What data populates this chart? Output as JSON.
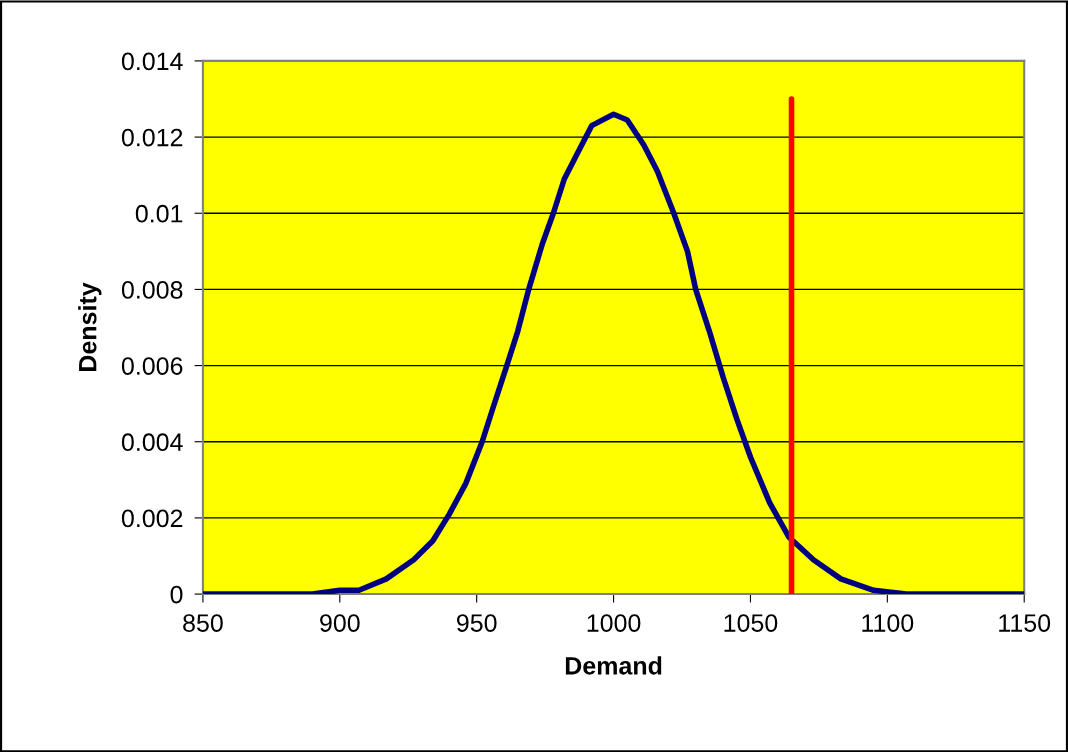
{
  "chart_data": {
    "type": "line",
    "xlabel": "Demand",
    "ylabel": "Density",
    "xlim": [
      850,
      1150
    ],
    "xticks": [
      850,
      900,
      950,
      1000,
      1050,
      1100,
      1150
    ],
    "ylim": [
      0,
      0.014
    ],
    "yticks": [
      0,
      0.002,
      0.004,
      0.006,
      0.008,
      0.01,
      0.012,
      0.014
    ],
    "grid": "y",
    "marker": "none",
    "line_style": "solid",
    "series": [
      {
        "color": "#000080",
        "x": [
          850,
          890,
          900,
          907,
          917,
          927,
          934,
          940,
          946,
          952,
          956,
          961,
          965,
          969,
          974,
          978,
          982,
          987,
          992,
          1000,
          1005,
          1011,
          1016,
          1022,
          1027,
          1030,
          1035,
          1040,
          1045,
          1050,
          1057,
          1064,
          1073,
          1083,
          1095,
          1107,
          1150
        ],
        "values": [
          0,
          0,
          0.0001,
          0.0001,
          0.0004,
          0.0009,
          0.0014,
          0.0021,
          0.0029,
          0.004,
          0.0049,
          0.006,
          0.0069,
          0.008,
          0.0092,
          0.01,
          0.0109,
          0.0116,
          0.0123,
          0.0126,
          0.01245,
          0.0118,
          0.0111,
          0.01,
          0.009,
          0.008,
          0.0069,
          0.0057,
          0.0046,
          0.0036,
          0.0024,
          0.0015,
          0.0009,
          0.0004,
          0.0001,
          0,
          0
        ]
      },
      {
        "color": "#ff0000",
        "x": [
          1065,
          1065
        ],
        "values": [
          0,
          0.013
        ]
      }
    ]
  }
}
